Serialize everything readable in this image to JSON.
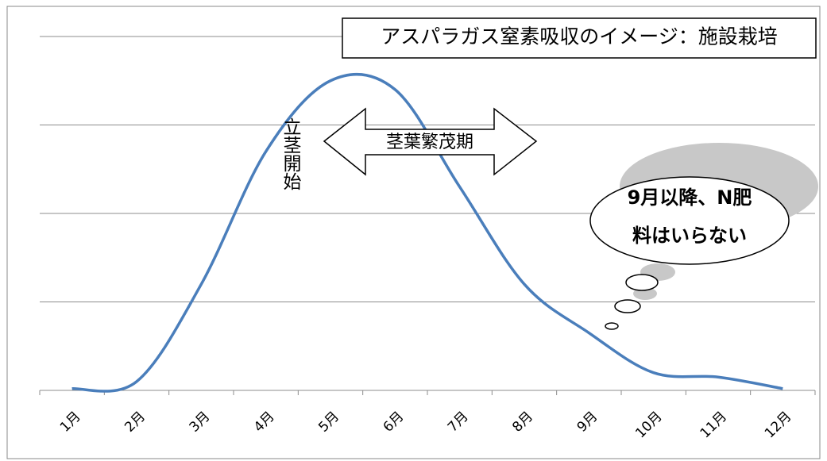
{
  "chart_data": {
    "type": "line",
    "title": "アスパラガス窒素吸収のイメージ：施設栽培",
    "categories": [
      "1月",
      "2月",
      "3月",
      "4月",
      "5月",
      "6月",
      "7月",
      "8月",
      "9月",
      "10月",
      "11月",
      "12月"
    ],
    "values": [
      0.02,
      0.1,
      1.2,
      2.7,
      3.5,
      3.4,
      2.3,
      1.2,
      0.65,
      0.2,
      0.15,
      0.02
    ],
    "color": "#4a7ebb",
    "ylim": [
      0,
      4
    ],
    "yticks": [
      0,
      1,
      2,
      3,
      4
    ],
    "grid": true,
    "annotations": {
      "start": "立茎開始",
      "period": "茎葉繁茂期",
      "bubble": [
        "9月以降、N肥",
        "料はいらない"
      ]
    }
  }
}
